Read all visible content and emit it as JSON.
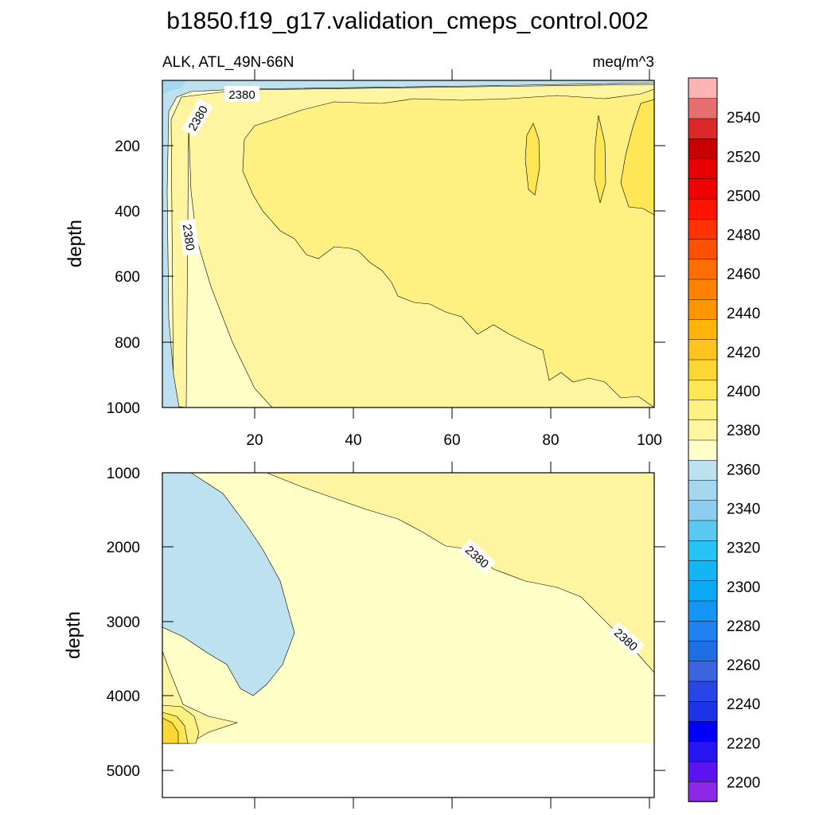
{
  "chart_data": {
    "type": "contour",
    "title": "b1850.f19_g17.validation_cmeps_control.002",
    "left_subtitle": "ALK, ATL_49N-66N",
    "right_subtitle": "meq/m^3",
    "panels": [
      {
        "name": "upper",
        "ylabel": "depth",
        "ylim": [
          0,
          1000
        ],
        "y_reversed": true,
        "y_ticks": [
          "200",
          "400",
          "600",
          "800",
          "1000"
        ],
        "xlim": [
          1,
          101
        ],
        "x_ticks": [
          "20",
          "40",
          "60",
          "80",
          "100"
        ],
        "contour_labels": [
          "2380",
          "2380",
          "2380"
        ]
      },
      {
        "name": "lower",
        "ylabel": "depth",
        "ylim": [
          1000,
          5400
        ],
        "y_reversed": true,
        "y_ticks": [
          "1000",
          "2000",
          "3000",
          "4000",
          "5000"
        ],
        "xlim": [
          1,
          101
        ],
        "contour_labels": [
          "2380",
          "2380"
        ]
      }
    ],
    "colorbar": {
      "min": 2190,
      "max": 2560,
      "interval": 10,
      "labels": [
        "2540",
        "2520",
        "2500",
        "2480",
        "2460",
        "2440",
        "2420",
        "2400",
        "2380",
        "2360",
        "2340",
        "2320",
        "2300",
        "2280",
        "2260",
        "2240",
        "2220",
        "2200"
      ],
      "colors": [
        "#8c28e6",
        "#5a14f0",
        "#2814f0",
        "#0000fa",
        "#1e32e6",
        "#2846e6",
        "#3c64e1",
        "#1e6ee6",
        "#1e82f0",
        "#1496f5",
        "#0aaaf5",
        "#14b4f5",
        "#28c3f5",
        "#5ac8f0",
        "#8ccdf0",
        "#a5d7f0",
        "#bee1f0",
        "#ffffc8",
        "#fff5a0",
        "#fff082",
        "#ffe655",
        "#ffd732",
        "#ffc31e",
        "#ffb40a",
        "#ff9600",
        "#ff8200",
        "#ff6e00",
        "#ff5000",
        "#ff3200",
        "#ff1400",
        "#f00000",
        "#e60000",
        "#c80000",
        "#dc2828",
        "#e66e6e",
        "#ffb4b4"
      ]
    }
  }
}
